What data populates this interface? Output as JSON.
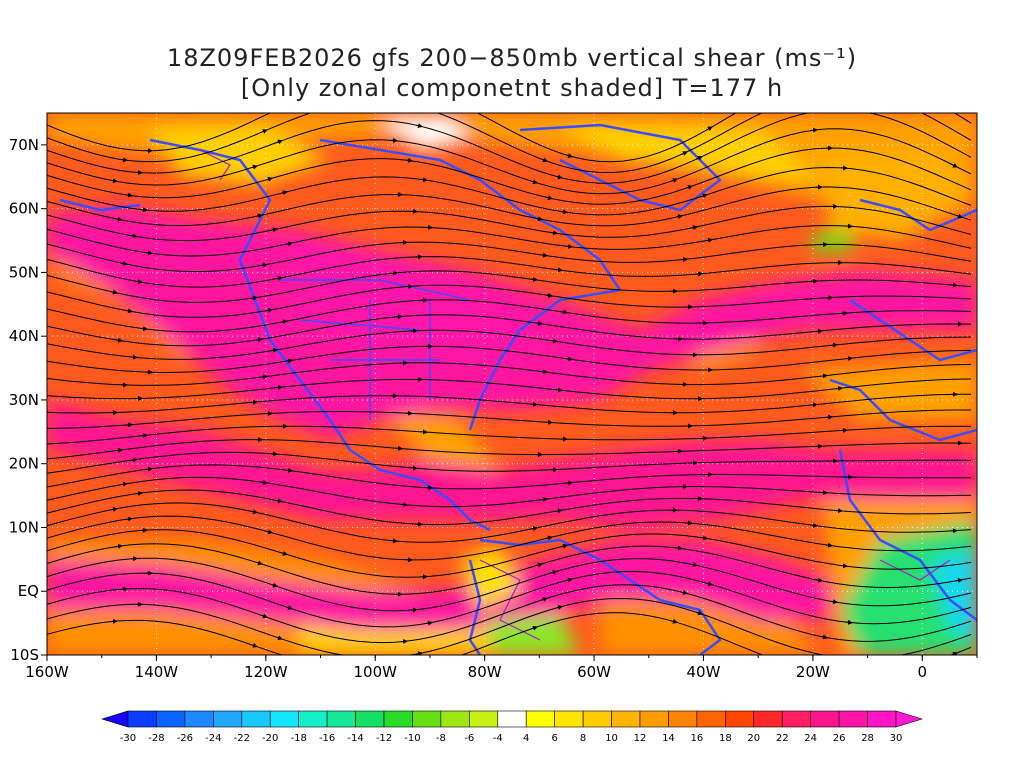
{
  "title": {
    "line1": "18Z09FEB2026 gfs 200−850mb vertical shear (ms⁻¹)",
    "line2": "[Only zonal componetnt shaded] T=177 h"
  },
  "axes": {
    "lon_labels": [
      "160W",
      "140W",
      "120W",
      "100W",
      "80W",
      "60W",
      "40W",
      "20W",
      "0"
    ],
    "lat_labels": [
      "70N",
      "60N",
      "50N",
      "40N",
      "30N",
      "20N",
      "10N",
      "EQ",
      "10S"
    ]
  },
  "colorbar": {
    "labels": [
      "-30",
      "-28",
      "-26",
      "-24",
      "-22",
      "-20",
      "-18",
      "-16",
      "-14",
      "-12",
      "-10",
      "-8",
      "-6",
      "-4",
      "4",
      "6",
      "8",
      "10",
      "12",
      "14",
      "16",
      "18",
      "20",
      "22",
      "24",
      "26",
      "28",
      "30"
    ],
    "colors": [
      "#1a00ff",
      "#0b3cff",
      "#0a64ff",
      "#1e88ff",
      "#1ea8ff",
      "#18c8ff",
      "#14e6ff",
      "#16f0c8",
      "#16e896",
      "#16e064",
      "#28dc28",
      "#64e014",
      "#a0e614",
      "#c8f014",
      "#ffffff",
      "#ffff00",
      "#ffe600",
      "#ffcc00",
      "#ffb400",
      "#ff9c00",
      "#ff8200",
      "#ff6400",
      "#ff4600",
      "#ff2828",
      "#ff1e64",
      "#ff148c",
      "#ff14a8",
      "#ff14c8",
      "#ff1ad2"
    ]
  },
  "map_colors": {
    "land_outline": "#3a4cff",
    "secondary_outline": "#a020c8",
    "streamline": "#000000",
    "grid": "#ffffff"
  }
}
